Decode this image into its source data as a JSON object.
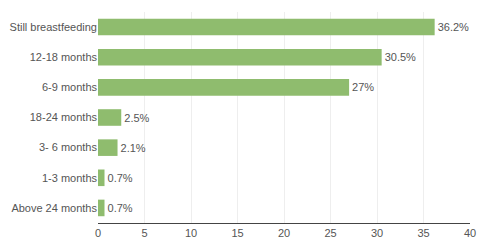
{
  "chart_data": {
    "type": "bar",
    "orientation": "horizontal",
    "categories": [
      "Still breastfeeding",
      "12-18 months",
      "6-9 months",
      "18-24 months",
      "3- 6 months",
      "1-3 months",
      "Above 24 months"
    ],
    "values": [
      36.2,
      30.5,
      27.0,
      2.5,
      2.1,
      0.7,
      0.7
    ],
    "value_labels": [
      "36.2%",
      "30.5%",
      "27%",
      "2.5%",
      "2.1%",
      "0.7%",
      "0.7%"
    ],
    "data_labels": true,
    "color": "#8fbc6e",
    "xlim": [
      0,
      40
    ],
    "xticks": [
      0,
      5,
      10,
      15,
      20,
      25,
      30,
      35,
      40
    ],
    "grid": true
  }
}
